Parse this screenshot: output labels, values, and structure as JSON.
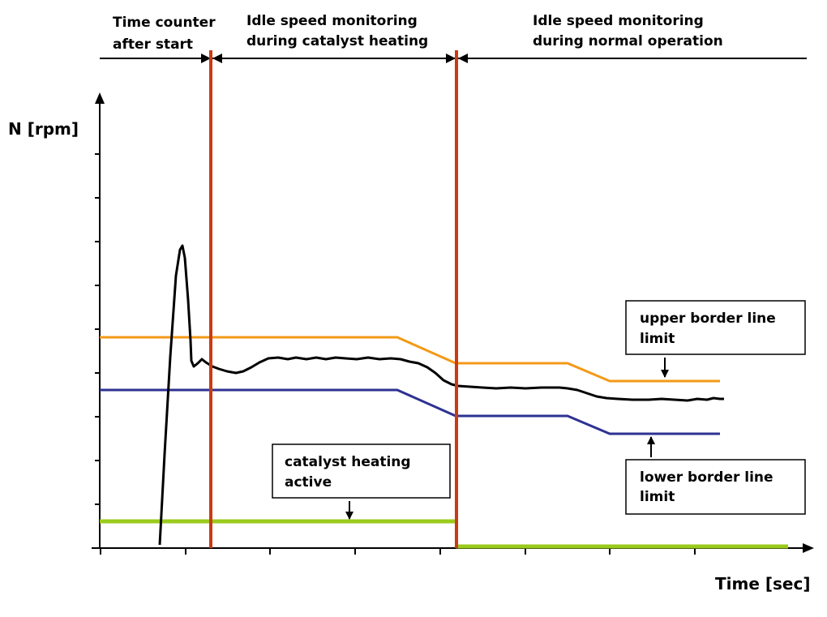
{
  "header": {
    "phase1_line1": "Time counter",
    "phase1_line2": "after start",
    "phase2_line1": "Idle speed monitoring",
    "phase2_line2": "during catalyst heating",
    "phase3_line1": "Idle speed monitoring",
    "phase3_line2": "during normal operation"
  },
  "axes": {
    "y_label": "N [rpm]",
    "x_label": "Time [sec]"
  },
  "callouts": {
    "upper_line1": "upper border line",
    "upper_line2": "limit",
    "lower_line1": "lower border line",
    "lower_line2": "limit",
    "catalyst_line1": "catalyst heating",
    "catalyst_line2": "active"
  },
  "colors": {
    "phase_divider": "#cc3a12",
    "upper_limit": "#f39a17",
    "lower_limit": "#2e3192",
    "speed_trace": "#000000",
    "catalyst_signal": "#9acb1c"
  }
}
